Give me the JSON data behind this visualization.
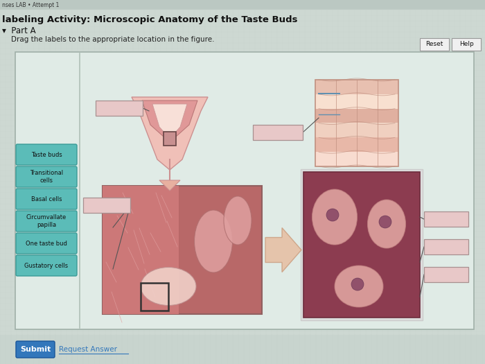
{
  "title": "labeling Activity: Microscopic Anatomy of the Taste Buds",
  "subtitle": "Part A",
  "instruction": "Drag the labels to the appropriate location in the figure.",
  "page_bg": "#c8d4ce",
  "content_bg": "#cdd8d2",
  "panel_bg": "#e0ebe6",
  "label_buttons": [
    "Taste buds",
    "Transitional\ncells",
    "Basal cells",
    "Circumvallate\npapilla",
    "One taste bud",
    "Gustatory cells"
  ],
  "label_button_color": "#5bbcb8",
  "label_button_text_color": "#111111",
  "blank_box_color": "#e8c8c8",
  "blank_box_edge": "#a89090",
  "connector_color": "#555555",
  "arrow_color": "#e8b090",
  "arrow_edge": "#c89060",
  "submit_btn_color": "#3377bb",
  "request_answer_color": "#3377bb",
  "reset_btn_color": "#f0f0f0",
  "help_btn_color": "#f0f0f0",
  "divider_color": "#b0c0b8",
  "panel_border": "#a0b0a8"
}
